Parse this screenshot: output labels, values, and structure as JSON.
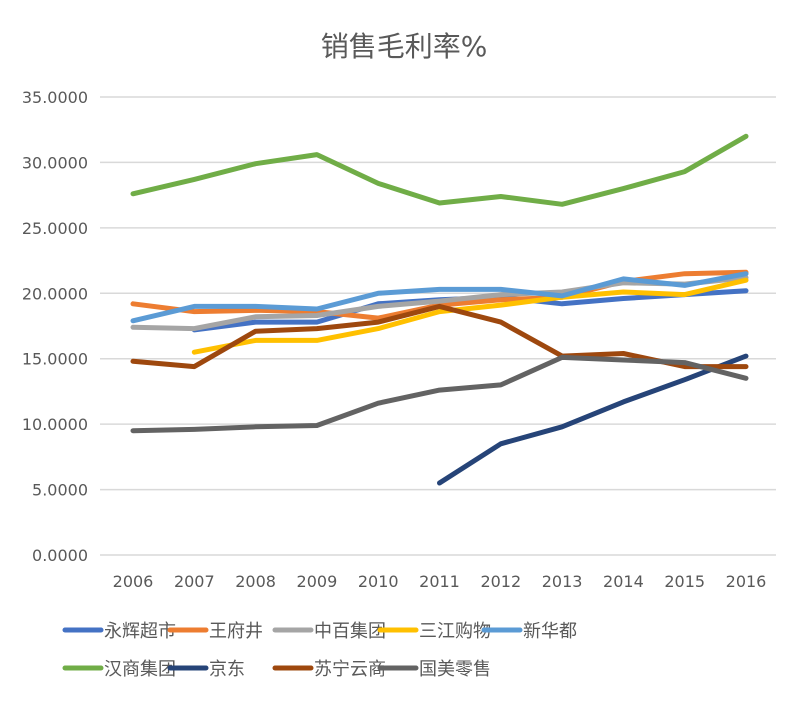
{
  "chart_data": {
    "type": "line",
    "title": "销售毛利率%",
    "xlabel": "",
    "ylabel": "",
    "categories": [
      "2006",
      "2007",
      "2008",
      "2009",
      "2010",
      "2011",
      "2012",
      "2013",
      "2014",
      "2015",
      "2016"
    ],
    "ylim": [
      0,
      35
    ],
    "yticks": [
      "0.0000",
      "5.0000",
      "10.0000",
      "15.0000",
      "20.0000",
      "25.0000",
      "30.0000",
      "35.0000"
    ],
    "grid": true,
    "legend_position": "bottom",
    "series": [
      {
        "name": "永辉超市",
        "color": "#4472C4",
        "values": [
          null,
          17.2,
          17.8,
          17.8,
          19.2,
          19.5,
          19.7,
          19.2,
          19.6,
          19.9,
          20.2
        ]
      },
      {
        "name": "王府井",
        "color": "#ED7D31",
        "values": [
          19.2,
          18.6,
          18.7,
          18.6,
          18.1,
          19.1,
          19.5,
          19.7,
          20.9,
          21.5,
          21.6
        ]
      },
      {
        "name": "中百集团",
        "color": "#A5A5A5",
        "values": [
          17.4,
          17.3,
          18.2,
          18.3,
          19.0,
          19.4,
          19.9,
          20.1,
          20.8,
          20.7,
          21.2
        ]
      },
      {
        "name": "三江购物",
        "color": "#FFC000",
        "values": [
          null,
          15.5,
          16.4,
          16.4,
          17.3,
          18.6,
          19.1,
          19.7,
          20.1,
          19.9,
          21.0
        ]
      },
      {
        "name": "新华都",
        "color": "#5B9BD5",
        "values": [
          17.9,
          19.0,
          19.0,
          18.8,
          20.0,
          20.3,
          20.3,
          19.8,
          21.1,
          20.6,
          21.5
        ]
      },
      {
        "name": "汉商集团",
        "color": "#70AD47",
        "values": [
          27.6,
          28.7,
          29.9,
          30.6,
          28.4,
          26.9,
          27.4,
          26.8,
          28.0,
          29.3,
          32.0
        ]
      },
      {
        "name": "京东",
        "color": "#264478",
        "values": [
          null,
          null,
          null,
          null,
          null,
          5.5,
          8.5,
          9.8,
          11.7,
          13.4,
          15.2
        ]
      },
      {
        "name": "苏宁云商",
        "color": "#9E480E",
        "values": [
          14.8,
          14.4,
          17.1,
          17.3,
          17.8,
          19.0,
          17.8,
          15.2,
          15.4,
          14.4,
          14.4
        ]
      },
      {
        "name": "国美零售",
        "color": "#636363",
        "values": [
          9.5,
          9.6,
          9.8,
          9.9,
          11.6,
          12.6,
          13.0,
          15.1,
          14.9,
          14.7,
          13.5
        ]
      }
    ]
  }
}
